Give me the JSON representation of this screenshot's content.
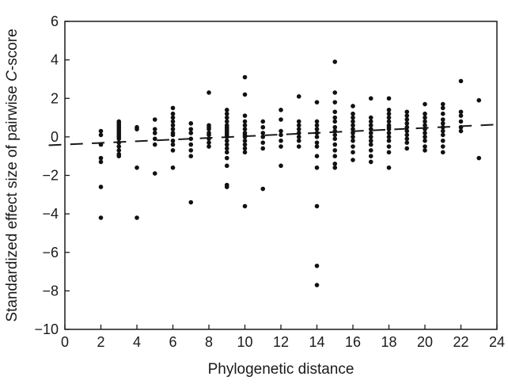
{
  "chart_data": {
    "type": "scatter",
    "title": "",
    "xlabel": "Phylogenetic distance",
    "ylabel_prefix": "Standardized effect size of pairwise ",
    "ylabel_italic": "C",
    "ylabel_suffix": "-score",
    "xlim": [
      0,
      24
    ],
    "ylim": [
      -10,
      6
    ],
    "x_ticks": [
      0,
      2,
      4,
      6,
      8,
      10,
      12,
      14,
      16,
      18,
      20,
      22,
      24
    ],
    "y_ticks": [
      -10,
      -8,
      -6,
      -4,
      -2,
      0,
      2,
      4,
      6
    ],
    "grid": false,
    "legend": "none",
    "trend_line": {
      "intercept": -0.4,
      "slope": 0.0433,
      "style": "dashed"
    },
    "point_color": "#111111",
    "points": [
      [
        2,
        0.3
      ],
      [
        2,
        0.1
      ],
      [
        2,
        -0.4
      ],
      [
        2,
        -1.1
      ],
      [
        2,
        -1.3
      ],
      [
        2,
        -2.6
      ],
      [
        2,
        -4.2
      ],
      [
        3,
        0.8
      ],
      [
        3,
        0.7
      ],
      [
        3,
        0.6
      ],
      [
        3,
        0.5
      ],
      [
        3,
        0.4
      ],
      [
        3,
        0.3
      ],
      [
        3,
        0.2
      ],
      [
        3,
        0.1
      ],
      [
        3,
        0.0
      ],
      [
        3,
        -0.1
      ],
      [
        3,
        -0.3
      ],
      [
        3,
        -0.5
      ],
      [
        3,
        -0.7
      ],
      [
        3,
        -0.9
      ],
      [
        3,
        -1.0
      ],
      [
        4,
        0.5
      ],
      [
        4,
        0.4
      ],
      [
        4,
        -1.6
      ],
      [
        4,
        -4.2
      ],
      [
        5,
        0.9
      ],
      [
        5,
        0.4
      ],
      [
        5,
        0.2
      ],
      [
        5,
        -0.1
      ],
      [
        5,
        -0.4
      ],
      [
        5,
        -1.9
      ],
      [
        6,
        1.5
      ],
      [
        6,
        1.2
      ],
      [
        6,
        1.0
      ],
      [
        6,
        0.8
      ],
      [
        6,
        0.6
      ],
      [
        6,
        0.4
      ],
      [
        6,
        0.2
      ],
      [
        6,
        0.1
      ],
      [
        6,
        -0.2
      ],
      [
        6,
        -0.4
      ],
      [
        6,
        -0.7
      ],
      [
        6,
        -1.6
      ],
      [
        7,
        0.7
      ],
      [
        7,
        0.4
      ],
      [
        7,
        0.2
      ],
      [
        7,
        -0.1
      ],
      [
        7,
        -0.4
      ],
      [
        7,
        -0.7
      ],
      [
        7,
        -1.0
      ],
      [
        7,
        -3.4
      ],
      [
        8,
        2.3
      ],
      [
        8,
        0.6
      ],
      [
        8,
        0.5
      ],
      [
        8,
        0.4
      ],
      [
        8,
        0.2
      ],
      [
        8,
        0.1
      ],
      [
        8,
        -0.1
      ],
      [
        8,
        -0.3
      ],
      [
        8,
        -0.5
      ],
      [
        9,
        1.4
      ],
      [
        9,
        1.2
      ],
      [
        9,
        1.0
      ],
      [
        9,
        0.8
      ],
      [
        9,
        0.6
      ],
      [
        9,
        0.5
      ],
      [
        9,
        0.4
      ],
      [
        9,
        0.3
      ],
      [
        9,
        0.2
      ],
      [
        9,
        0.1
      ],
      [
        9,
        0.0
      ],
      [
        9,
        -0.2
      ],
      [
        9,
        -0.4
      ],
      [
        9,
        -0.6
      ],
      [
        9,
        -0.8
      ],
      [
        9,
        -1.1
      ],
      [
        9,
        -1.5
      ],
      [
        9,
        -2.5
      ],
      [
        9,
        -2.6
      ],
      [
        10,
        3.1
      ],
      [
        10,
        2.2
      ],
      [
        10,
        1.1
      ],
      [
        10,
        0.8
      ],
      [
        10,
        0.6
      ],
      [
        10,
        0.4
      ],
      [
        10,
        0.2
      ],
      [
        10,
        0.1
      ],
      [
        10,
        0.0
      ],
      [
        10,
        -0.2
      ],
      [
        10,
        -0.4
      ],
      [
        10,
        -0.6
      ],
      [
        10,
        -0.8
      ],
      [
        10,
        -3.6
      ],
      [
        11,
        0.8
      ],
      [
        11,
        0.5
      ],
      [
        11,
        0.2
      ],
      [
        11,
        0.0
      ],
      [
        11,
        -0.3
      ],
      [
        11,
        -0.6
      ],
      [
        11,
        -2.7
      ],
      [
        12,
        1.4
      ],
      [
        12,
        0.9
      ],
      [
        12,
        0.3
      ],
      [
        12,
        0.1
      ],
      [
        12,
        -0.2
      ],
      [
        12,
        -0.5
      ],
      [
        12,
        -1.5
      ],
      [
        13,
        2.1
      ],
      [
        13,
        0.8
      ],
      [
        13,
        0.6
      ],
      [
        13,
        0.4
      ],
      [
        13,
        0.2
      ],
      [
        13,
        0.0
      ],
      [
        13,
        -0.2
      ],
      [
        13,
        -0.5
      ],
      [
        14,
        1.8
      ],
      [
        14,
        0.8
      ],
      [
        14,
        0.6
      ],
      [
        14,
        0.4
      ],
      [
        14,
        0.2
      ],
      [
        14,
        0.0
      ],
      [
        14,
        -0.3
      ],
      [
        14,
        -0.5
      ],
      [
        14,
        -1.0
      ],
      [
        14,
        -1.6
      ],
      [
        14,
        -3.6
      ],
      [
        14,
        -6.7
      ],
      [
        14,
        -7.7
      ],
      [
        15,
        3.9
      ],
      [
        15,
        2.3
      ],
      [
        15,
        1.8
      ],
      [
        15,
        1.3
      ],
      [
        15,
        1.0
      ],
      [
        15,
        0.8
      ],
      [
        15,
        0.5
      ],
      [
        15,
        0.3
      ],
      [
        15,
        0.1
      ],
      [
        15,
        -0.1
      ],
      [
        15,
        -0.4
      ],
      [
        15,
        -0.7
      ],
      [
        15,
        -1.0
      ],
      [
        15,
        -1.4
      ],
      [
        15,
        -1.6
      ],
      [
        16,
        1.6
      ],
      [
        16,
        1.2
      ],
      [
        16,
        1.0
      ],
      [
        16,
        0.8
      ],
      [
        16,
        0.6
      ],
      [
        16,
        0.4
      ],
      [
        16,
        0.2
      ],
      [
        16,
        0.0
      ],
      [
        16,
        -0.2
      ],
      [
        16,
        -0.5
      ],
      [
        16,
        -0.8
      ],
      [
        16,
        -1.2
      ],
      [
        17,
        2.0
      ],
      [
        17,
        1.0
      ],
      [
        17,
        0.8
      ],
      [
        17,
        0.6
      ],
      [
        17,
        0.4
      ],
      [
        17,
        0.2
      ],
      [
        17,
        0.0
      ],
      [
        17,
        -0.2
      ],
      [
        17,
        -0.4
      ],
      [
        17,
        -0.7
      ],
      [
        17,
        -1.0
      ],
      [
        17,
        -1.3
      ],
      [
        18,
        2.0
      ],
      [
        18,
        1.4
      ],
      [
        18,
        1.2
      ],
      [
        18,
        1.0
      ],
      [
        18,
        0.8
      ],
      [
        18,
        0.6
      ],
      [
        18,
        0.5
      ],
      [
        18,
        0.4
      ],
      [
        18,
        0.2
      ],
      [
        18,
        0.0
      ],
      [
        18,
        -0.2
      ],
      [
        18,
        -0.5
      ],
      [
        18,
        -0.8
      ],
      [
        18,
        -1.6
      ],
      [
        19,
        1.3
      ],
      [
        19,
        1.1
      ],
      [
        19,
        0.9
      ],
      [
        19,
        0.7
      ],
      [
        19,
        0.5
      ],
      [
        19,
        0.3
      ],
      [
        19,
        0.1
      ],
      [
        19,
        -0.1
      ],
      [
        19,
        -0.3
      ],
      [
        19,
        -0.6
      ],
      [
        20,
        1.7
      ],
      [
        20,
        1.2
      ],
      [
        20,
        1.0
      ],
      [
        20,
        0.8
      ],
      [
        20,
        0.6
      ],
      [
        20,
        0.4
      ],
      [
        20,
        0.2
      ],
      [
        20,
        0.0
      ],
      [
        20,
        -0.2
      ],
      [
        20,
        -0.5
      ],
      [
        20,
        -0.7
      ],
      [
        21,
        1.7
      ],
      [
        21,
        1.5
      ],
      [
        21,
        1.2
      ],
      [
        21,
        0.9
      ],
      [
        21,
        0.7
      ],
      [
        21,
        0.5
      ],
      [
        21,
        0.3
      ],
      [
        21,
        0.1
      ],
      [
        21,
        -0.2
      ],
      [
        21,
        -0.5
      ],
      [
        21,
        -0.8
      ],
      [
        22,
        2.9
      ],
      [
        22,
        1.3
      ],
      [
        22,
        1.1
      ],
      [
        22,
        0.8
      ],
      [
        22,
        0.5
      ],
      [
        22,
        0.3
      ],
      [
        23,
        1.9
      ],
      [
        23,
        -1.1
      ]
    ]
  }
}
